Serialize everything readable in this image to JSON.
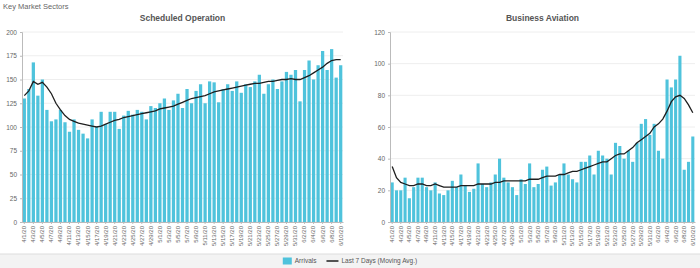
{
  "header": {
    "title": "Key Market Sectors"
  },
  "chart_data": [
    {
      "type": "bar",
      "title": "Scheduled Operation",
      "categories": [
        "4/1/20",
        null,
        "4/3/20",
        null,
        "4/5/20",
        null,
        "4/7/20",
        null,
        "4/9/20",
        null,
        "4/11/20",
        null,
        "4/13/20",
        null,
        "4/15/20",
        null,
        "4/17/20",
        null,
        "4/19/20",
        null,
        "4/21/20",
        null,
        "4/23/20",
        null,
        "4/25/20",
        null,
        "4/27/20",
        null,
        "4/29/20",
        null,
        "5/1/20",
        null,
        "5/3/20",
        null,
        "5/5/20",
        null,
        "5/7/20",
        null,
        "5/9/20",
        null,
        "5/11/20",
        null,
        "5/13/20",
        null,
        "5/15/20",
        null,
        "5/17/20",
        null,
        "5/19/20",
        null,
        "5/21/20",
        null,
        "5/23/20",
        null,
        "5/25/20",
        null,
        "5/27/20",
        null,
        "5/29/20",
        null,
        "5/31/20",
        null,
        "6/2/20",
        null,
        "6/4/20",
        null,
        "6/6/20",
        null,
        "6/8/20",
        null,
        "6/10/20"
      ],
      "series": [
        {
          "name": "Arrivals",
          "type": "bar",
          "color": "#4fc3dc",
          "values": [
            130,
            140,
            168,
            133,
            150,
            118,
            106,
            108,
            118,
            105,
            95,
            108,
            97,
            93,
            88,
            108,
            100,
            116,
            103,
            116,
            116,
            98,
            112,
            117,
            113,
            118,
            116,
            108,
            122,
            120,
            125,
            130,
            118,
            128,
            135,
            120,
            140,
            125,
            138,
            145,
            125,
            148,
            147,
            126,
            140,
            145,
            138,
            148,
            136,
            145,
            142,
            148,
            155,
            135,
            145,
            150,
            140,
            148,
            158,
            155,
            160,
            127,
            160,
            170,
            150,
            165,
            180,
            160,
            182,
            152,
            165
          ]
        },
        {
          "name": "Last 7 Days (Moving Avg.)",
          "type": "line",
          "color": "#1e1e1e",
          "values": [
            133,
            138,
            148,
            145,
            147,
            142,
            135,
            125,
            118,
            112,
            108,
            106,
            104,
            103,
            102,
            101,
            100,
            101,
            103,
            105,
            107,
            108,
            110,
            111,
            112,
            113,
            114,
            115,
            116,
            117,
            119,
            120,
            121,
            122,
            124,
            126,
            128,
            130,
            131,
            132,
            133,
            135,
            137,
            138,
            139,
            140,
            141,
            142,
            143,
            144,
            145,
            146,
            146,
            147,
            148,
            148,
            149,
            150,
            150,
            151,
            150,
            150,
            152,
            154,
            157,
            160,
            163,
            167,
            170,
            171,
            171
          ]
        }
      ],
      "ylim": [
        0,
        200
      ],
      "yticks": [
        0,
        25,
        50,
        75,
        100,
        125,
        150,
        175,
        200
      ],
      "grid": true,
      "legend": "bottom"
    },
    {
      "type": "bar",
      "title": "Business Aviation",
      "categories": [
        "4/1/20",
        null,
        "4/3/20",
        null,
        "4/5/20",
        null,
        "4/7/20",
        null,
        "4/9/20",
        null,
        "4/11/20",
        null,
        "4/13/20",
        null,
        "4/15/20",
        null,
        "4/17/20",
        null,
        "4/19/20",
        null,
        "4/21/20",
        null,
        "4/23/20",
        null,
        "4/25/20",
        null,
        "4/27/20",
        null,
        "4/29/20",
        null,
        "5/1/20",
        null,
        "5/3/20",
        null,
        "5/5/20",
        null,
        "5/7/20",
        null,
        "5/9/20",
        null,
        "5/11/20",
        null,
        "5/13/20",
        null,
        "5/15/20",
        null,
        "5/17/20",
        null,
        "5/19/20",
        null,
        "5/21/20",
        null,
        "5/23/20",
        null,
        "5/25/20",
        null,
        "5/27/20",
        null,
        "5/29/20",
        null,
        "5/31/20",
        null,
        "6/2/20",
        null,
        "6/4/20",
        null,
        "6/6/20",
        null,
        "6/8/20",
        null,
        "6/10/20"
      ],
      "series": [
        {
          "type": "bar",
          "color": "#4fc3dc",
          "values": [
            25,
            20,
            20,
            28,
            15,
            22,
            28,
            28,
            22,
            20,
            25,
            18,
            17,
            20,
            26,
            22,
            30,
            23,
            19,
            21,
            37,
            24,
            22,
            25,
            30,
            40,
            28,
            25,
            22,
            17,
            27,
            24,
            37,
            22,
            24,
            33,
            35,
            23,
            25,
            30,
            37,
            30,
            27,
            25,
            38,
            38,
            42,
            30,
            45,
            42,
            40,
            30,
            50,
            48,
            40,
            45,
            38,
            50,
            62,
            65,
            55,
            62,
            45,
            40,
            90,
            85,
            90,
            105,
            33,
            38,
            54
          ]
        },
        {
          "type": "line",
          "color": "#1e1e1e",
          "values": [
            35,
            28,
            25,
            24,
            23,
            23,
            24,
            24,
            23,
            23,
            24,
            23,
            22,
            22,
            22,
            22,
            23,
            23,
            23,
            23,
            24,
            24,
            24,
            24,
            25,
            25,
            26,
            26,
            26,
            26,
            26,
            26,
            27,
            27,
            27,
            28,
            29,
            29,
            29,
            30,
            30,
            31,
            32,
            32,
            33,
            34,
            35,
            36,
            37,
            38,
            38,
            40,
            42,
            43,
            43,
            45,
            47,
            50,
            52,
            54,
            56,
            60,
            62,
            65,
            70,
            76,
            79,
            80,
            78,
            74,
            69
          ]
        }
      ],
      "ylim": [
        0,
        120
      ],
      "yticks": [
        0,
        20,
        40,
        60,
        80,
        100,
        120
      ],
      "grid": true
    }
  ]
}
